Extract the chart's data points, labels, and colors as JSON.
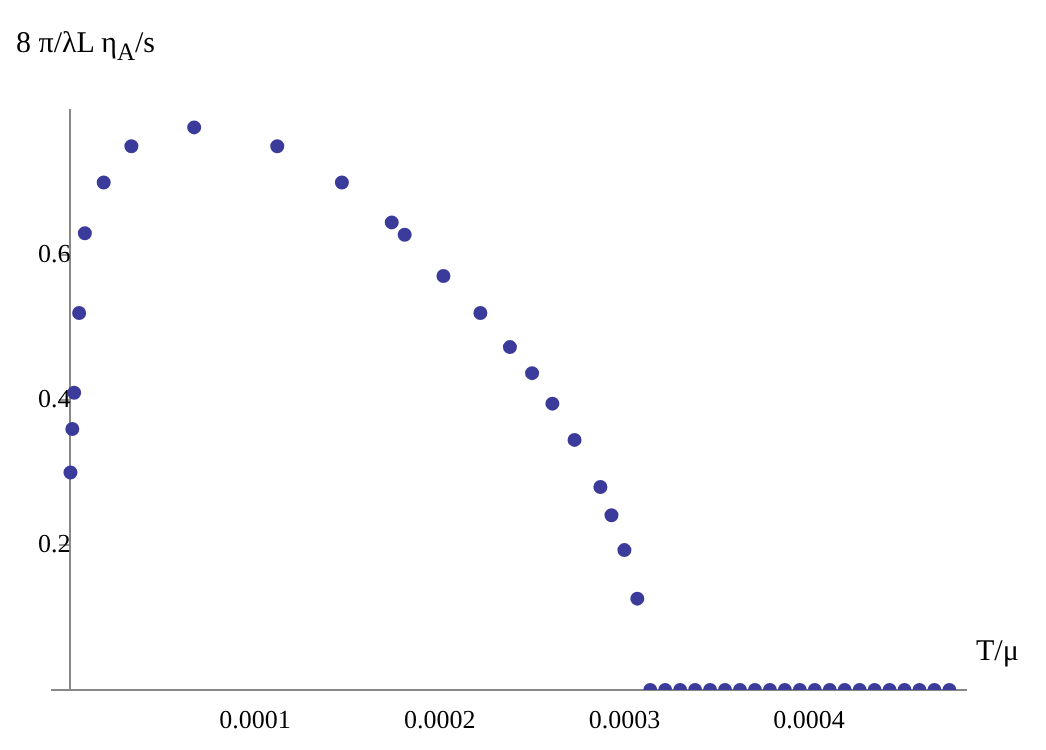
{
  "chart_data": {
    "type": "scatter",
    "xlabel": "T/μ",
    "ylabel": "8 π/λL η$_{A}$/s",
    "x": [
      0,
      1e-06,
      2e-06,
      4.7e-06,
      7.8e-06,
      1.8e-05,
      3.3e-05,
      6.7e-05,
      0.000112,
      0.000147,
      0.000174,
      0.000181,
      0.000202,
      0.000222,
      0.000238,
      0.00025,
      0.000261,
      0.000273,
      0.000287,
      0.000293,
      0.0003,
      0.000307,
      0.000314,
      0.0003221,
      0.0003302,
      0.0003383,
      0.0003464,
      0.0003545,
      0.0003626,
      0.0003707,
      0.0003788,
      0.0003869,
      0.000395,
      0.0004031,
      0.0004112,
      0.0004193,
      0.0004274,
      0.0004355,
      0.0004436,
      0.0004517,
      0.0004598,
      0.0004679,
      0.000476
    ],
    "series": [
      {
        "color": "#3b3b9b",
        "values": [
          0.3,
          0.36,
          0.41,
          0.52,
          0.63,
          0.7,
          0.75,
          0.776,
          0.75,
          0.7,
          0.645,
          0.628,
          0.571,
          0.52,
          0.473,
          0.437,
          0.395,
          0.345,
          0.28,
          0.241,
          0.193,
          0.126,
          0,
          0,
          0,
          0,
          0,
          0,
          0,
          0,
          0,
          0,
          0,
          0,
          0,
          0,
          0,
          0,
          0,
          0,
          0,
          0,
          0
        ]
      }
    ],
    "marker": "circle",
    "grid": false,
    "legend": false,
    "xlim": [
      -1e-05,
      0.000485
    ],
    "xticks": [
      0.0001,
      0.0002,
      0.0003,
      0.0004
    ],
    "ylim": [
      0,
      0.8
    ],
    "yticks": [
      0.2,
      0.4,
      0.6
    ]
  }
}
